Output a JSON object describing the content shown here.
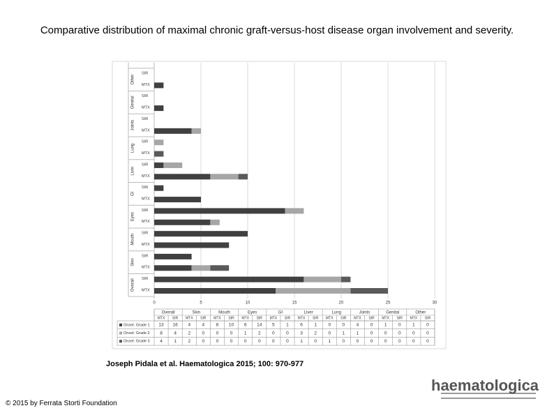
{
  "title": "Comparative distribution of maximal chronic graft-versus-host disease organ involvement and severity.",
  "citation": "Joseph Pidala et al. Haematologica 2015; 100: 970-977",
  "copyright": "© 2015 by Ferrata Storti Foundation",
  "logo": "haematologica",
  "chart_data": {
    "type": "bar",
    "orientation": "horizontal",
    "stacked": true,
    "groups": [
      "Overall",
      "Skin",
      "Mouth",
      "Eyes",
      "GI",
      "Liver",
      "Lung",
      "Joints",
      "Genital",
      "Other"
    ],
    "categories": [
      "MTX",
      "SIR",
      "MTX",
      "SIR",
      "MTX",
      "SIR",
      "MTX",
      "SIR",
      "MTX",
      "SIR",
      "MTX",
      "SIR",
      "MTX",
      "SIR",
      "MTX",
      "SIR",
      "MTX",
      "SIR",
      "MTX",
      "SIR"
    ],
    "series": [
      {
        "name": "Onset: Grade 1",
        "color": "#404040",
        "values": [
          13,
          16,
          4,
          4,
          8,
          10,
          6,
          14,
          5,
          1,
          6,
          1,
          0,
          0,
          4,
          0,
          1,
          0,
          1,
          0
        ]
      },
      {
        "name": "Onset: Grade 2",
        "color": "#a6a6a6",
        "values": [
          8,
          4,
          2,
          0,
          0,
          0,
          1,
          2,
          0,
          0,
          3,
          2,
          0,
          1,
          1,
          0,
          0,
          0,
          0,
          0
        ]
      },
      {
        "name": "Onset: Grade 3",
        "color": "#5a5a5a",
        "values": [
          4,
          1,
          2,
          0,
          0,
          0,
          0,
          0,
          0,
          0,
          1,
          0,
          1,
          0,
          0,
          0,
          0,
          0,
          0,
          0
        ]
      }
    ],
    "xlim": [
      0,
      30
    ],
    "xticks": [
      0,
      5,
      10,
      15,
      20,
      25,
      30
    ],
    "grid": true
  }
}
